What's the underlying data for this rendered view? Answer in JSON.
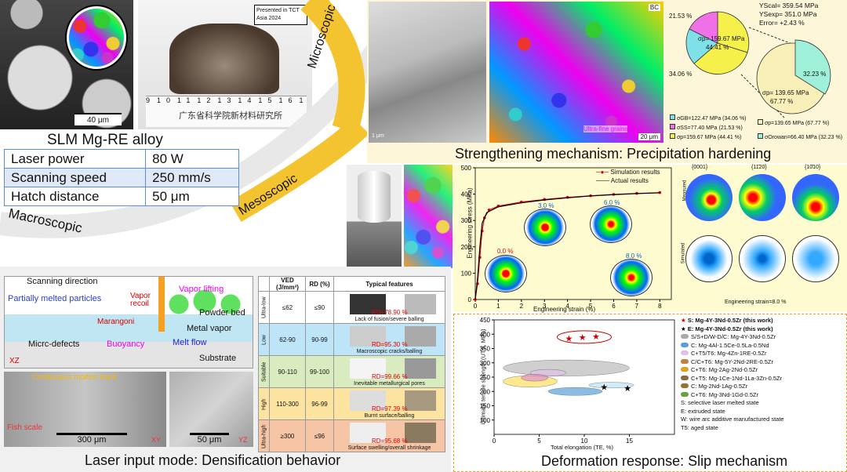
{
  "macro": {
    "caption": "SLM Mg-RE alloy",
    "powder_scale": "40 μm",
    "badge": "Presented in TCT Asia 2024",
    "ruler_text": "广东省科学院新材料研究所",
    "ruler_numbers": [
      "9",
      "10",
      "11",
      "12",
      "13",
      "14",
      "15",
      "16",
      "17",
      "18",
      "19",
      "20"
    ],
    "params": [
      {
        "name": "Laser power",
        "value": "80 W"
      },
      {
        "name": "Scanning speed",
        "value": "250 mm/s"
      },
      {
        "name": "Hatch distance",
        "value": "50 μm"
      }
    ],
    "scale_labels": [
      "Macroscopic",
      "Mesoscopic",
      "Microscopic"
    ]
  },
  "strength": {
    "title": "Strengthening mechanism: Precipitation hardening",
    "bc_label": "BC",
    "ultrafine": "Ultra-fine grains",
    "scale_1um": "1 μm",
    "scale_20um": "20 μm",
    "ys": [
      "YScal= 359.54 MPa",
      "YSexp= 351.0 MPa",
      "Error= +2.43 %"
    ],
    "pie1": {
      "pct": [
        "21.53 %",
        "34.06 %"
      ],
      "sigma": "σp= 159.67 MPa",
      "sigma_pct": "44.41 %"
    },
    "pie2": {
      "pct": "32.23 %",
      "sigma": "σp= 139.65 MPa",
      "sigma_pct": "67.77 %"
    },
    "legend": [
      "σGB=122.47 MPa (34.06 %)",
      "σSS=77.40 MPa (21.53 %)",
      "σp=159.67 MPa (44.41 %)",
      "σp=139.65 MPa (67.77 %)",
      "σOrowan=66.40 MPa (32.23 %)"
    ],
    "colors": {
      "gb": "#7fe0e8",
      "ss": "#f070e8",
      "p": "#f5f04a",
      "p2": "#f8f0b8",
      "orowan": "#9ef0d8"
    }
  },
  "stress": {
    "ylabel": "Engineering stress (MPa)",
    "xlabel": "Engineering strain (%)",
    "legend": [
      "Simulation results",
      "Actual results"
    ],
    "strain_labels": [
      "0.0 %",
      "3.0 %",
      "6.0 %",
      "8.0 %"
    ],
    "pf_headers": [
      "{0001}",
      "{11̄20}",
      "{10̄10}"
    ],
    "measured": "Measured",
    "simulated": "Simulated",
    "strain_caption": "Engineering strain=8.0 %"
  },
  "laser": {
    "title": "Laser input mode: Densification behavior",
    "schematic": [
      "Scanning direction",
      "Partially melted particles",
      "Vapor recoil",
      "Vapor lifting",
      "Marangoni",
      "Powder bed",
      "Metal vapor",
      "Buoyancy",
      "Melt flow",
      "Micrc-defects",
      "Substrate",
      "XZ"
    ],
    "track": [
      "Continuous molten track",
      "Fish scale",
      "XY",
      "YZ"
    ],
    "scales": [
      "300 μm",
      "50 μm"
    ],
    "table_headers": [
      "VED (J/mm³)",
      "RD (%)",
      "Typical features"
    ],
    "rows": [
      {
        "level": "Ultra-low",
        "ved": "≤62",
        "rd": "≤90",
        "rdval": "RD=78.90 %",
        "feature": "Lack of fusion/severe balling"
      },
      {
        "level": "Low",
        "ved": "62-90",
        "rd": "90-99",
        "rdval": "RD=95.30 %",
        "feature": "Macroscopic cracks/balling"
      },
      {
        "level": "Suitable",
        "ved": "90-110",
        "rd": "99-100",
        "rdval": "RD=99.66 %",
        "feature": "Inevitable metallurgical pores"
      },
      {
        "level": "High",
        "ved": "110-300",
        "rd": "96-99",
        "rdval": "RD=97.39 %",
        "feature": "Burnt surface/balling"
      },
      {
        "level": "Ultra-high",
        "ved": "≥300",
        "rd": "≤96",
        "rdval": "RD=95.68 %",
        "feature": "Surface swelling/overall shrinkage"
      }
    ]
  },
  "deform": {
    "title": "Deformation response: Slip mechanism",
    "xlabel": "Total elongation (TE, %)",
    "ylabel": "Ultimate tensile strength (UTS, MPa)",
    "legend": [
      "S: Mg-4Y-3Nd-0.5Zr (this work)",
      "E: Mg-4Y-3Nd-0.5Zr (this work)",
      "S/S+D/W-D/C: Mg-4Y-3Nd-0.5Zr",
      "C: Mg-4Al-1.5Ce-0.5La-0.5Nd",
      "C+T5/T6: Mg-4Zn-1RE-0.5Zr",
      "C/C+T6: Mg-5Y-2Nd-2RE-0.5Zr",
      "C+T6: Mg-2Ag-2Nd-0.5Zr",
      "C+T5: Mg-1Ce-1Nd-1La-3Zn-0.5Zr",
      "C: Mg-2Nd-1Ag-0.5Zr",
      "C+T6: Mg-3Nd-1Gd-0.5Zr",
      "S: selective laser melted state",
      "E: extruded state",
      "W: wire arc additive manufactured state",
      "T5: aged state"
    ]
  },
  "chart_data": [
    {
      "type": "line",
      "xlabel": "Engineering strain (%)",
      "ylabel": "Engineering stress (MPa)",
      "xlim": [
        0,
        8.5
      ],
      "ylim": [
        0,
        500
      ],
      "x_ticks": [
        0,
        1,
        2,
        3,
        4,
        5,
        6,
        7,
        8
      ],
      "y_ticks": [
        0,
        100,
        200,
        300,
        400,
        500
      ],
      "series": [
        {
          "name": "Simulation results",
          "x": [
            0,
            0.1,
            0.2,
            0.3,
            0.4,
            0.6,
            1,
            2,
            3,
            4,
            5,
            6,
            7,
            8
          ],
          "y": [
            0,
            60,
            160,
            260,
            310,
            340,
            355,
            370,
            380,
            388,
            394,
            399,
            403,
            406
          ]
        },
        {
          "name": "Actual results",
          "x": [
            0,
            0.1,
            0.2,
            0.3,
            0.5,
            1,
            2,
            3,
            4,
            5,
            6,
            7,
            8
          ],
          "y": [
            0,
            80,
            200,
            290,
            330,
            352,
            367,
            378,
            386,
            393,
            398,
            402,
            405
          ]
        }
      ]
    },
    {
      "type": "scatter",
      "xlabel": "Total elongation (TE, %)",
      "ylabel": "Ultimate tensile strength (UTS, MPa)",
      "xlim": [
        0,
        20
      ],
      "ylim": [
        50,
        450
      ],
      "x_ticks": [
        0,
        5,
        10,
        15
      ],
      "y_ticks": [
        100,
        150,
        200,
        250,
        300,
        350,
        400,
        450
      ],
      "series": [
        {
          "name": "S: Mg-4Y-3Nd-0.5Zr (this work)",
          "x": [
            8.3,
            9.8,
            11.3
          ],
          "y": [
            385,
            390,
            392
          ]
        },
        {
          "name": "E: Mg-4Y-3Nd-0.5Zr (this work)",
          "x": [
            12.2,
            14.8
          ],
          "y": [
            216,
            212
          ]
        }
      ]
    }
  ]
}
